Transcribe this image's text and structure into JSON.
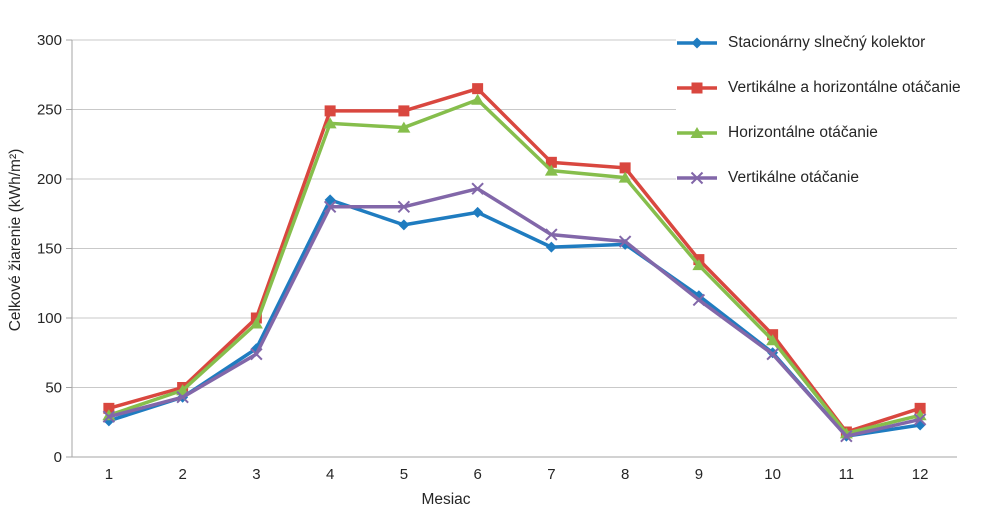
{
  "chart_data": {
    "type": "line",
    "title": "",
    "categories": [
      "1",
      "2",
      "3",
      "4",
      "5",
      "6",
      "7",
      "8",
      "9",
      "10",
      "11",
      "12"
    ],
    "series": [
      {
        "name": "Stacionárny slnečný kolektor",
        "marker": "diamond",
        "color": "#1F7CC0",
        "values": [
          26,
          43,
          78,
          185,
          167,
          176,
          151,
          153,
          116,
          75,
          15,
          23
        ]
      },
      {
        "name": "Vertikálne a horizontálne otáčanie",
        "marker": "square",
        "color": "#D9473F",
        "values": [
          35,
          50,
          100,
          249,
          249,
          265,
          212,
          208,
          142,
          88,
          18,
          35
        ]
      },
      {
        "name": "Horizontálne otáčanie",
        "marker": "triangle",
        "color": "#86BE4C",
        "values": [
          30,
          48,
          96,
          240,
          237,
          257,
          206,
          201,
          138,
          84,
          17,
          30
        ]
      },
      {
        "name": "Vertikálne otáčanie",
        "marker": "x",
        "color": "#8267A9",
        "values": [
          29,
          43,
          74,
          180,
          180,
          193,
          160,
          155,
          113,
          74,
          15,
          27
        ]
      }
    ],
    "xlabel": "Mesiac",
    "ylabel": "Celkové žiarenie (kWh/m²)",
    "ylim": [
      0,
      300
    ],
    "ytick_step": 50,
    "grid": "horizontal",
    "legend_position": "top-right",
    "colors": {
      "axis": "#A6A6A6",
      "gridline": "#C9C9C9",
      "text": "#262626",
      "background": "#FFFFFF"
    }
  }
}
